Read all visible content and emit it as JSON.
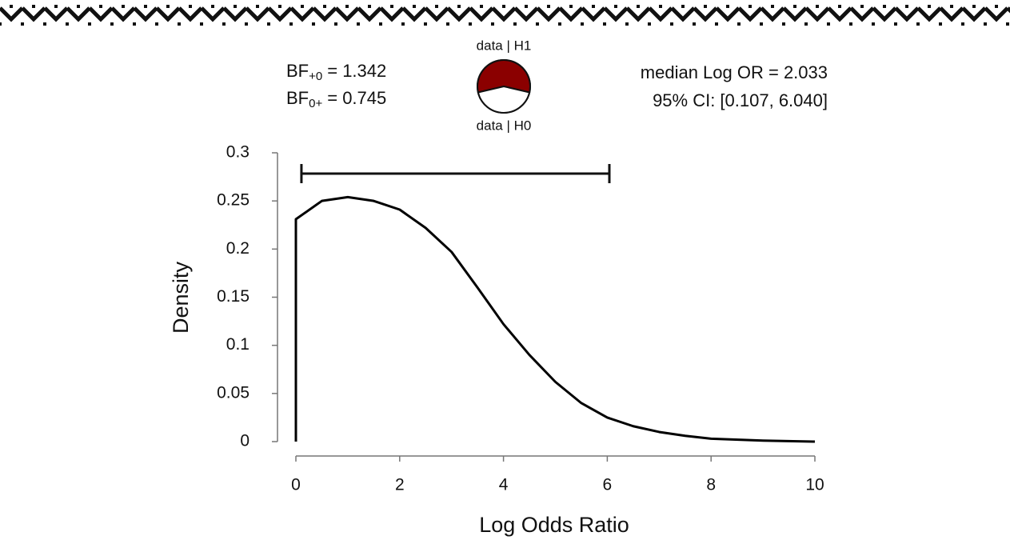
{
  "chart_data": {
    "type": "line",
    "xlabel": "Log Odds Ratio",
    "ylabel": "Density",
    "x": [
      0,
      0,
      0.5,
      1,
      1.5,
      2,
      2.5,
      3,
      3.5,
      4,
      4.5,
      5,
      5.5,
      6,
      6.5,
      7,
      7.5,
      8,
      9,
      10
    ],
    "series": [
      {
        "color": "#000000",
        "values": [
          0,
          0.231,
          0.25,
          0.254,
          0.25,
          0.241,
          0.222,
          0.197,
          0.16,
          0.122,
          0.09,
          0.062,
          0.04,
          0.025,
          0.016,
          0.01,
          0.006,
          0.003,
          0.001,
          0
        ]
      }
    ],
    "xlim": [
      0,
      10
    ],
    "xticks": [
      0,
      2,
      4,
      6,
      8,
      10
    ],
    "ylim": [
      0,
      0.3
    ],
    "yticks": [
      0,
      0.05,
      0.1,
      0.15,
      0.2,
      0.25,
      0.3
    ],
    "bf": [
      {
        "label": "BF",
        "subscript": "+0",
        "value_text": "= 1.342"
      },
      {
        "label": "BF",
        "subscript": "0+",
        "value_text": "= 0.745"
      }
    ],
    "median_label": "median Log OR =  2.033",
    "ci_label": "95% CI: [0.107, 6.040]",
    "ci": [
      0.107,
      6.04
    ],
    "pie": {
      "labels": [
        "data | H1",
        "data | H0"
      ],
      "values": [
        57.3,
        42.7
      ],
      "colors": [
        "#8b0000",
        "#ffffff"
      ]
    }
  }
}
